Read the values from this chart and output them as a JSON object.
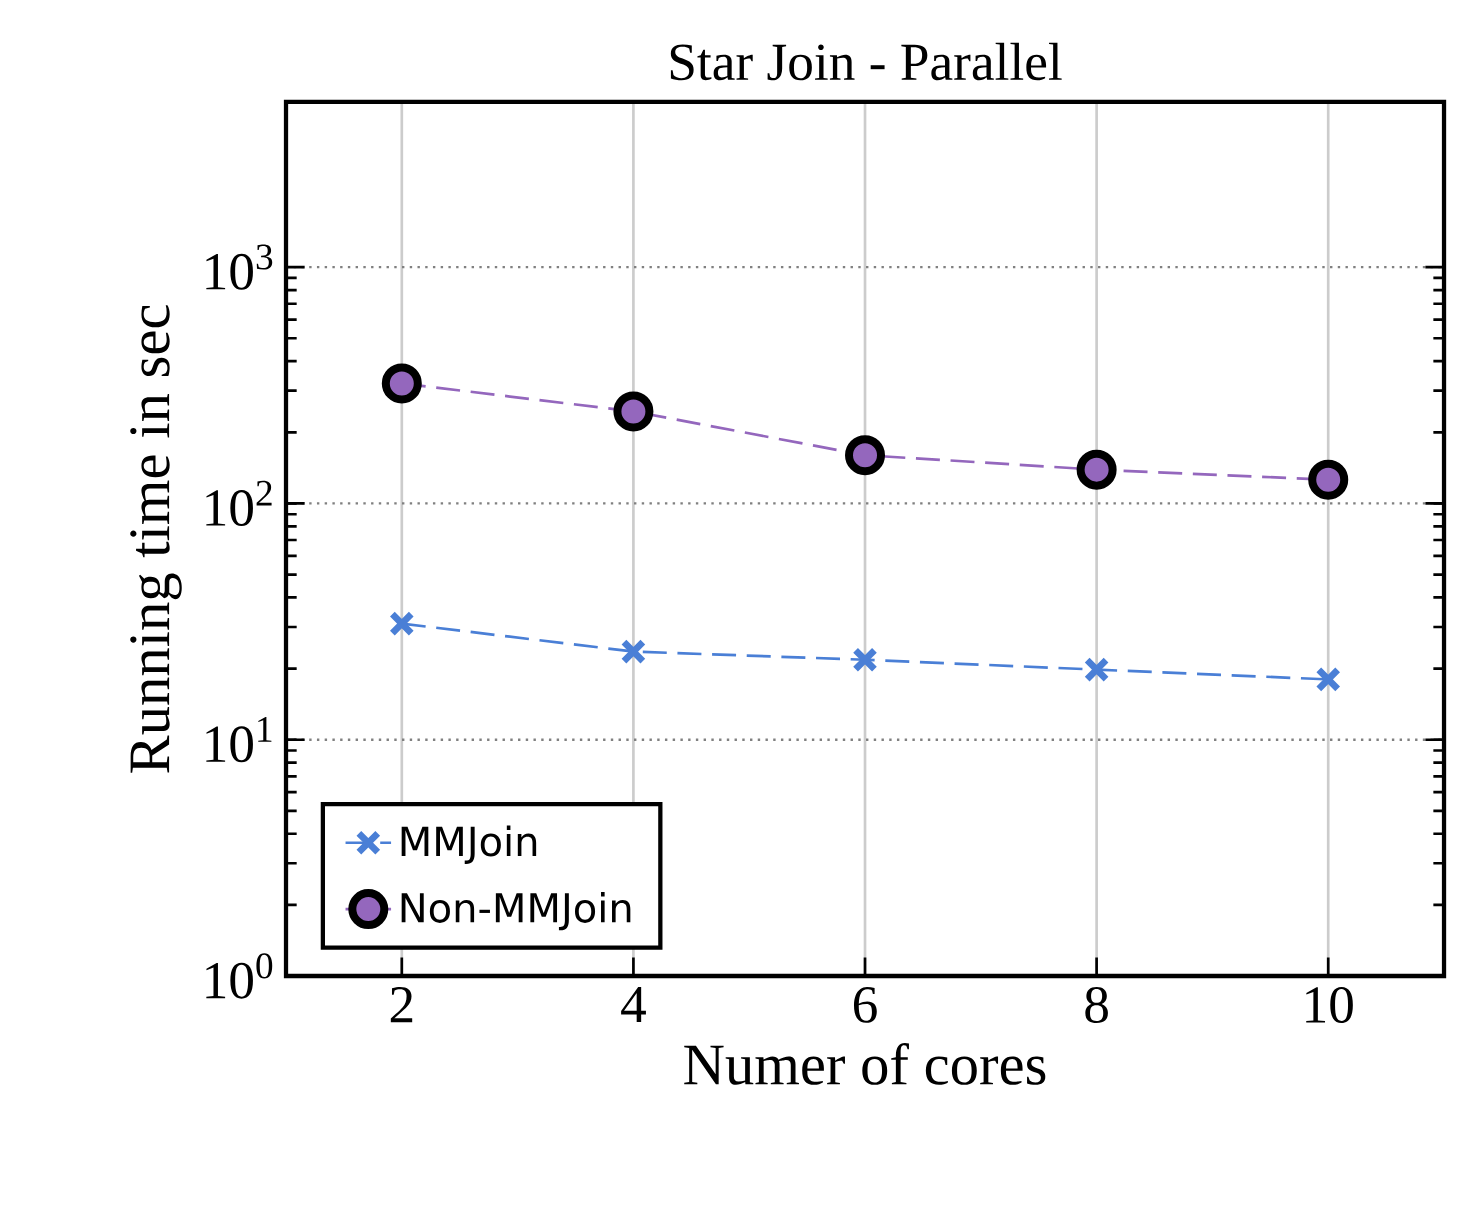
{
  "chart_data": {
    "type": "line",
    "title": "Star Join - Parallel",
    "xlabel": "Numer of cores",
    "ylabel": "Running time in sec",
    "x": [
      2,
      4,
      6,
      8,
      10
    ],
    "series": [
      {
        "name": "MMJoin",
        "color": "#4a7fd6",
        "marker": "cross",
        "values": [
          31,
          23.6,
          21.8,
          19.8,
          18
        ]
      },
      {
        "name": "Non-MMJoin",
        "color": "#9467bd",
        "marker": "circle",
        "values": [
          322,
          245,
          160,
          139,
          126
        ]
      }
    ],
    "log": "y",
    "xlim": [
      1,
      11
    ],
    "ylim": [
      1,
      5000
    ],
    "xticks": [
      2,
      4,
      6,
      8,
      10
    ],
    "yticks": [
      {
        "value": 1,
        "label": "10$^{0}$"
      },
      {
        "value": 10,
        "label": "10$^{1}$"
      },
      {
        "value": 100,
        "label": "10$^{2}$"
      },
      {
        "value": 1000,
        "label": "10$^{3}$"
      }
    ],
    "grid": true,
    "legend": "bottom left",
    "line_style": "dashed"
  }
}
